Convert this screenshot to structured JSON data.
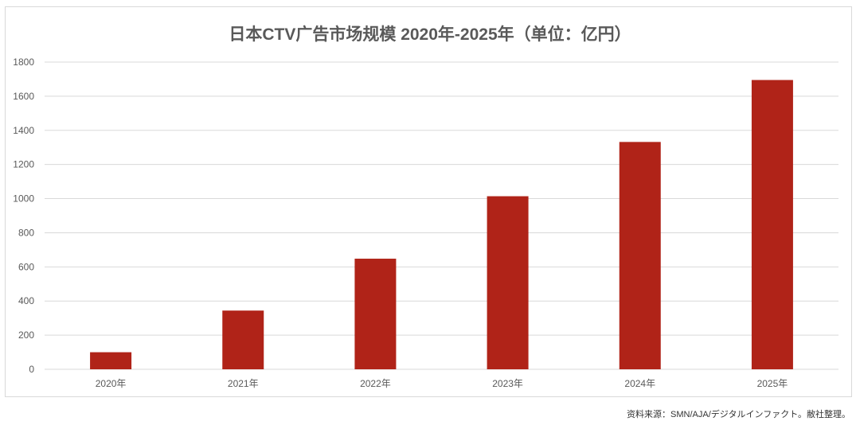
{
  "chart_data": {
    "type": "bar",
    "title": "日本CTV广告市场规模 2020年-2025年（单位：亿円）",
    "categories": [
      "2020年",
      "2021年",
      "2022年",
      "2023年",
      "2024年",
      "2025年"
    ],
    "values": [
      100,
      344,
      648,
      1014,
      1332,
      1695
    ],
    "ylim": [
      0,
      1800
    ],
    "yticks": [
      0,
      200,
      400,
      600,
      800,
      1000,
      1200,
      1400,
      1600,
      1800
    ],
    "grid": true,
    "bar_color": "#b02318",
    "xlabel": "",
    "ylabel": ""
  },
  "source": "资料来源：SMN/AJA/デジタルインファクト。敝社整理。"
}
